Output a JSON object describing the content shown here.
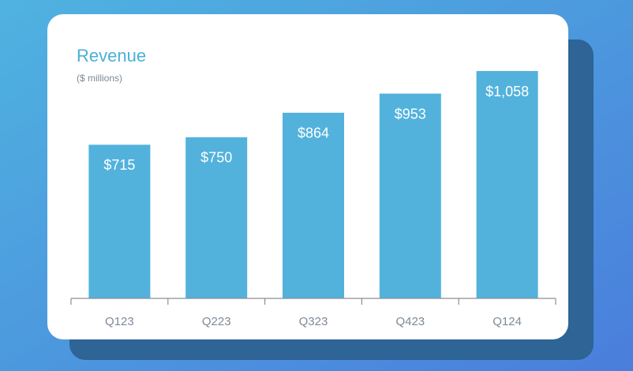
{
  "chart_data": {
    "type": "bar",
    "title": "Revenue",
    "subtitle": "($ millions)",
    "categories": [
      "Q123",
      "Q223",
      "Q323",
      "Q423",
      "Q124"
    ],
    "values": [
      715,
      750,
      864,
      953,
      1058
    ],
    "value_labels": [
      "$715",
      "$750",
      "$864",
      "$953",
      "$1,058"
    ],
    "color": "#52b2dc"
  }
}
